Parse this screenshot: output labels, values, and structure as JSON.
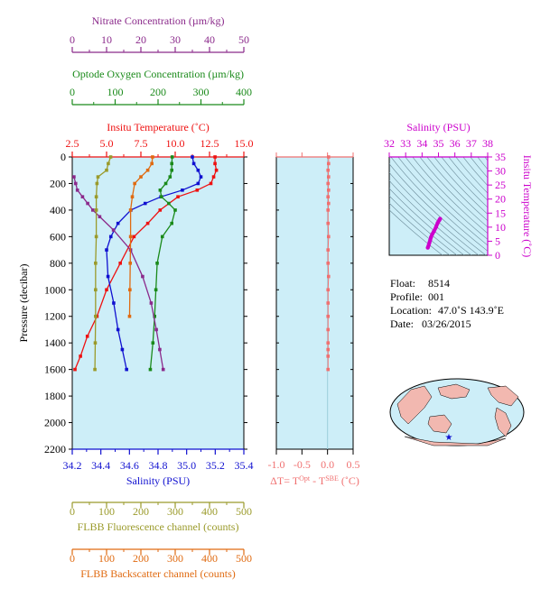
{
  "colors": {
    "nitrate": "#8b2a8b",
    "oxygen": "#1a8a1a",
    "temperature": "#ee1111",
    "salinity": "#1010d0",
    "fluorescence": "#9a9a2a",
    "backscatter": "#e06a10",
    "dt": "#f07070",
    "panel_bg": "#cdeef8",
    "ts_axis": "#cc00cc"
  },
  "meta": {
    "float_label": "Float:",
    "float_value": "8514",
    "profile_label": "Profile:",
    "profile_value": "001",
    "location_label": "Location:",
    "location_value": "47.0˚S  143.9˚E",
    "date_label": "Date:",
    "date_value": "03/26/2015"
  },
  "chart_data": [
    {
      "type": "line",
      "panel": "profiles",
      "y_axis": {
        "label": "Pressure (decibar)",
        "ticks": [
          0,
          200,
          400,
          600,
          800,
          1000,
          1200,
          1400,
          1600,
          1800,
          2000,
          2200
        ],
        "range": [
          0,
          2200
        ],
        "inverted": true
      },
      "axes": {
        "nitrate": {
          "label": "Nitrate Concentration (µm/kg)",
          "range": [
            0,
            50
          ],
          "ticks": [
            "0",
            "10",
            "20",
            "30",
            "40",
            "50"
          ]
        },
        "oxygen": {
          "label": "Optode Oxygen Concentration (µm/kg)",
          "range": [
            0,
            400
          ],
          "ticks": [
            "0",
            "100",
            "200",
            "300",
            "400"
          ]
        },
        "temperature": {
          "label": "Insitu Temperature (˚C)",
          "range": [
            2.5,
            15
          ],
          "ticks": [
            "2.5",
            "5.0",
            "7.5",
            "10.0",
            "12.5",
            "15.0"
          ]
        },
        "salinity": {
          "label": "Salinity (PSU)",
          "range": [
            34.2,
            35.4
          ],
          "ticks": [
            "34.2",
            "34.4",
            "34.6",
            "34.8",
            "35.0",
            "35.2",
            "35.4"
          ]
        },
        "fluorescence": {
          "label": "FLBB Fluorescence channel (counts)",
          "range": [
            0,
            500
          ],
          "ticks": [
            "0",
            "100",
            "200",
            "300",
            "400",
            "500"
          ]
        },
        "backscatter": {
          "label": "FLBB Backscatter channel (counts)",
          "range": [
            0,
            500
          ],
          "ticks": [
            "0",
            "100",
            "200",
            "300",
            "400",
            "500"
          ]
        }
      },
      "series": [
        {
          "key": "temperature",
          "x": [
            12.9,
            12.9,
            13.0,
            12.8,
            12.6,
            11.6,
            10.2,
            8.9,
            8.0,
            7.0,
            6.0,
            5.0,
            4.3,
            3.6,
            3.1,
            2.7
          ],
          "y": [
            0,
            50,
            100,
            150,
            200,
            250,
            300,
            400,
            500,
            600,
            800,
            1000,
            1200,
            1350,
            1500,
            1600
          ]
        },
        {
          "key": "salinity",
          "x": [
            35.04,
            35.05,
            35.08,
            35.1,
            35.08,
            34.97,
            34.82,
            34.71,
            34.61,
            34.52,
            34.47,
            34.44,
            34.45,
            34.49,
            34.52,
            34.55,
            34.58
          ],
          "y": [
            0,
            50,
            100,
            150,
            200,
            250,
            300,
            350,
            400,
            500,
            600,
            700,
            900,
            1100,
            1300,
            1450,
            1600
          ]
        },
        {
          "key": "oxygen",
          "x": [
            233,
            232,
            232,
            228,
            218,
            205,
            208,
            225,
            240,
            232,
            210,
            198,
            195,
            192,
            188,
            182
          ],
          "y": [
            0,
            50,
            100,
            150,
            200,
            250,
            300,
            350,
            400,
            500,
            600,
            800,
            1000,
            1200,
            1400,
            1600
          ]
        },
        {
          "key": "nitrate",
          "x": [
            0.5,
            1.0,
            1.5,
            3.0,
            4.5,
            6.0,
            8.0,
            12.0,
            17.0,
            20.5,
            23.0,
            24.5,
            25.5,
            26.5
          ],
          "y": [
            150,
            200,
            250,
            300,
            350,
            400,
            450,
            550,
            700,
            900,
            1100,
            1300,
            1450,
            1600
          ]
        },
        {
          "key": "fluorescence",
          "x": [
            112,
            105,
            100,
            75,
            72,
            70,
            70,
            70,
            68,
            68,
            68,
            67,
            66
          ],
          "y": [
            0,
            50,
            100,
            150,
            200,
            300,
            400,
            600,
            800,
            1000,
            1200,
            1400,
            1600
          ]
        },
        {
          "key": "backscatter",
          "x": [
            234,
            232,
            220,
            200,
            182,
            175,
            170,
            170,
            169,
            168,
            167
          ],
          "y": [
            0,
            50,
            100,
            150,
            200,
            300,
            400,
            600,
            800,
            1000,
            1200
          ]
        }
      ]
    },
    {
      "type": "scatter",
      "panel": "delta-t",
      "x_axis": {
        "label_main": "ΔT= T",
        "label_sup1": "Opt",
        "label_mid": " - T",
        "label_sup2": "SBE",
        "label_end": " (˚C)",
        "range": [
          -1.0,
          0.5
        ],
        "ticks": [
          "-1.0",
          "-0.5",
          "0.0",
          "0.5"
        ]
      },
      "series": [
        {
          "key": "dt",
          "x": [
            0.02,
            0.02,
            0.01,
            0.02,
            0.01,
            0.02,
            0.01,
            0.02,
            0.01,
            0.01,
            0.02,
            0.01,
            0.01,
            0.02,
            0.01,
            0.01,
            0.01,
            0.01,
            0.01,
            0.01,
            0.01,
            0.01
          ],
          "y": [
            0,
            50,
            100,
            150,
            200,
            250,
            300,
            350,
            400,
            500,
            600,
            700,
            800,
            900,
            1000,
            1100,
            1200,
            1300,
            1400,
            1450,
            1500,
            1600
          ]
        }
      ]
    },
    {
      "type": "scatter",
      "panel": "ts-diagram",
      "x_axis": {
        "label": "Salinity (PSU)",
        "range": [
          32,
          38
        ],
        "ticks": [
          "32",
          "33",
          "34",
          "35",
          "36",
          "37",
          "38"
        ]
      },
      "y_axis": {
        "label": "Insitu Temperature (˚C)",
        "range": [
          0,
          35
        ],
        "ticks": [
          "0",
          "5",
          "10",
          "15",
          "20",
          "25",
          "30",
          "35"
        ]
      },
      "series": [
        {
          "key": "ts",
          "x": [
            34.35,
            34.4,
            34.45,
            34.5,
            34.55,
            34.62,
            34.72,
            34.85,
            34.95,
            35.05,
            35.1
          ],
          "y": [
            2.7,
            3.5,
            4.5,
            5.5,
            6.5,
            7.5,
            8.5,
            10.0,
            11.5,
            12.5,
            13.0
          ]
        }
      ]
    }
  ]
}
